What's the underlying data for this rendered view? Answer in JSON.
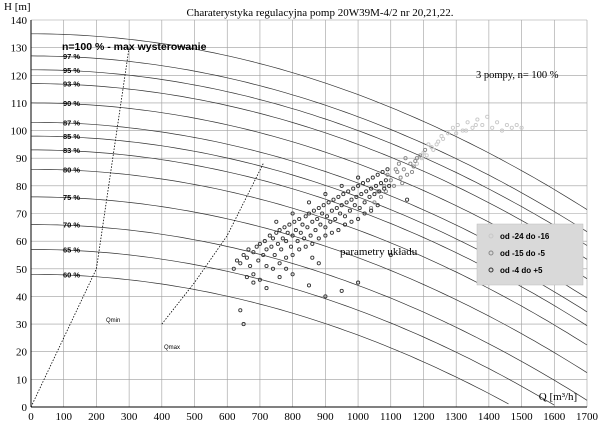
{
  "chart_data": {
    "type": "scatter",
    "title": "Charaterystyka  regulacyjna  pomp 20W39M-4/2  nr 20,21,22.",
    "xlabel": "Q [m³/h]",
    "ylabel": "H [m]",
    "xlim": [
      0,
      1700
    ],
    "ylim": [
      0,
      140
    ],
    "xticks": [
      0,
      100,
      200,
      300,
      400,
      500,
      600,
      700,
      800,
      900,
      1000,
      1100,
      1200,
      1300,
      1400,
      1500,
      1600,
      1700
    ],
    "yticks": [
      0,
      10,
      20,
      30,
      40,
      50,
      60,
      70,
      80,
      90,
      100,
      110,
      120,
      130,
      140
    ],
    "grid": true,
    "legend_position": "right",
    "annotations": {
      "max_label": "n=100 % - max wysterowanie",
      "pumps_label": "3 pompy,  n= 100 %",
      "system_label": "parametry układu",
      "qmin_label": "Qmin",
      "qmax_label": "Qmax"
    },
    "pump_curves": [
      {
        "label": "",
        "pct": 100,
        "h0": 135,
        "k": 2.2e-05
      },
      {
        "label": "97 %",
        "pct": 97,
        "h0": 127,
        "k": 2.2e-05
      },
      {
        "label": "95 %",
        "pct": 95,
        "h0": 122,
        "k": 2.2e-05
      },
      {
        "label": "93 %",
        "pct": 93,
        "h0": 117,
        "k": 2.2e-05
      },
      {
        "label": "90 %",
        "pct": 90,
        "h0": 110,
        "k": 2.2e-05
      },
      {
        "label": "87 %",
        "pct": 87,
        "h0": 103,
        "k": 2.2e-05
      },
      {
        "label": "85 %",
        "pct": 85,
        "h0": 98,
        "k": 2.2e-05
      },
      {
        "label": "83 %",
        "pct": 83,
        "h0": 93,
        "k": 2.2e-05
      },
      {
        "label": "80 %",
        "pct": 80,
        "h0": 86,
        "k": 2.2e-05
      },
      {
        "label": "75 %",
        "pct": 75,
        "h0": 76,
        "k": 2.2e-05
      },
      {
        "label": "70 %",
        "pct": 70,
        "h0": 66,
        "k": 2.2e-05
      },
      {
        "label": "65 %",
        "pct": 65,
        "h0": 57,
        "k": 2.2e-05
      },
      {
        "label": "60 %",
        "pct": 60,
        "h0": 48,
        "k": 2.2e-05
      }
    ],
    "series": [
      {
        "name": "od -24 do -16",
        "color": "#c8c8c8",
        "points": [
          [
            1290,
            101
          ],
          [
            1305,
            102
          ],
          [
            1320,
            100
          ],
          [
            1335,
            103
          ],
          [
            1350,
            101
          ],
          [
            1365,
            104
          ],
          [
            1380,
            102
          ],
          [
            1395,
            105
          ],
          [
            1410,
            101
          ],
          [
            1425,
            103
          ],
          [
            1440,
            100
          ],
          [
            1455,
            102
          ],
          [
            1470,
            101
          ],
          [
            1485,
            102
          ],
          [
            1500,
            101
          ],
          [
            1200,
            92
          ],
          [
            1215,
            95
          ],
          [
            1230,
            93
          ],
          [
            1245,
            96
          ],
          [
            1260,
            97
          ],
          [
            1275,
            99
          ],
          [
            1180,
            88
          ],
          [
            1195,
            90
          ],
          [
            1210,
            91
          ],
          [
            1225,
            94
          ],
          [
            1240,
            95
          ],
          [
            1255,
            98
          ],
          [
            1300,
            99
          ],
          [
            1330,
            100
          ],
          [
            1360,
            102
          ]
        ]
      },
      {
        "name": "od -15 do -5",
        "color": "#888888",
        "points": [
          [
            1100,
            82
          ],
          [
            1120,
            85
          ],
          [
            1140,
            86
          ],
          [
            1160,
            88
          ],
          [
            1180,
            90
          ],
          [
            1150,
            84
          ],
          [
            1130,
            83
          ],
          [
            1170,
            87
          ],
          [
            1190,
            91
          ],
          [
            1110,
            80
          ],
          [
            1060,
            78
          ],
          [
            1080,
            80
          ],
          [
            1070,
            76
          ],
          [
            1090,
            84
          ],
          [
            1125,
            88
          ],
          [
            1145,
            90
          ],
          [
            1165,
            85
          ],
          [
            1205,
            93
          ],
          [
            1050,
            74
          ],
          [
            1040,
            72
          ],
          [
            1085,
            78
          ],
          [
            1115,
            86
          ],
          [
            1135,
            81
          ],
          [
            1175,
            89
          ]
        ]
      },
      {
        "name": "od -4 do +5",
        "color": "#333333",
        "points": [
          [
            620,
            50
          ],
          [
            630,
            53
          ],
          [
            640,
            52
          ],
          [
            650,
            55
          ],
          [
            660,
            54
          ],
          [
            665,
            57
          ],
          [
            670,
            51
          ],
          [
            680,
            56
          ],
          [
            690,
            58
          ],
          [
            695,
            53
          ],
          [
            700,
            59
          ],
          [
            710,
            55
          ],
          [
            715,
            60
          ],
          [
            720,
            57
          ],
          [
            730,
            62
          ],
          [
            735,
            58
          ],
          [
            740,
            61
          ],
          [
            745,
            55
          ],
          [
            750,
            63
          ],
          [
            755,
            59
          ],
          [
            760,
            64
          ],
          [
            765,
            57
          ],
          [
            770,
            61
          ],
          [
            775,
            65
          ],
          [
            780,
            60
          ],
          [
            785,
            63
          ],
          [
            790,
            66
          ],
          [
            795,
            58
          ],
          [
            800,
            62
          ],
          [
            805,
            67
          ],
          [
            810,
            64
          ],
          [
            815,
            60
          ],
          [
            820,
            68
          ],
          [
            825,
            63
          ],
          [
            830,
            66
          ],
          [
            835,
            61
          ],
          [
            840,
            69
          ],
          [
            845,
            65
          ],
          [
            850,
            70
          ],
          [
            855,
            62
          ],
          [
            860,
            67
          ],
          [
            865,
            71
          ],
          [
            870,
            64
          ],
          [
            875,
            68
          ],
          [
            880,
            72
          ],
          [
            885,
            66
          ],
          [
            890,
            70
          ],
          [
            895,
            73
          ],
          [
            900,
            65
          ],
          [
            905,
            69
          ],
          [
            910,
            74
          ],
          [
            915,
            67
          ],
          [
            920,
            71
          ],
          [
            925,
            75
          ],
          [
            930,
            68
          ],
          [
            935,
            72
          ],
          [
            940,
            76
          ],
          [
            945,
            70
          ],
          [
            950,
            73
          ],
          [
            955,
            77
          ],
          [
            960,
            69
          ],
          [
            965,
            74
          ],
          [
            970,
            78
          ],
          [
            975,
            71
          ],
          [
            980,
            75
          ],
          [
            985,
            79
          ],
          [
            990,
            73
          ],
          [
            995,
            76
          ],
          [
            1000,
            80
          ],
          [
            1005,
            72
          ],
          [
            1010,
            77
          ],
          [
            1015,
            81
          ],
          [
            1020,
            74
          ],
          [
            1025,
            78
          ],
          [
            1030,
            82
          ],
          [
            1035,
            76
          ],
          [
            1040,
            79
          ],
          [
            1045,
            83
          ],
          [
            1050,
            77
          ],
          [
            1055,
            80
          ],
          [
            1060,
            84
          ],
          [
            1065,
            78
          ],
          [
            1070,
            81
          ],
          [
            1075,
            85
          ],
          [
            1080,
            79
          ],
          [
            1085,
            82
          ],
          [
            1090,
            86
          ],
          [
            1095,
            80
          ],
          [
            680,
            48
          ],
          [
            700,
            46
          ],
          [
            720,
            51
          ],
          [
            740,
            50
          ],
          [
            760,
            52
          ],
          [
            780,
            54
          ],
          [
            800,
            55
          ],
          [
            820,
            57
          ],
          [
            840,
            58
          ],
          [
            860,
            59
          ],
          [
            880,
            61
          ],
          [
            900,
            62
          ],
          [
            920,
            63
          ],
          [
            940,
            64
          ],
          [
            960,
            66
          ],
          [
            980,
            67
          ],
          [
            1000,
            68
          ],
          [
            1020,
            70
          ],
          [
            1040,
            71
          ],
          [
            1060,
            73
          ],
          [
            750,
            67
          ],
          [
            800,
            70
          ],
          [
            850,
            74
          ],
          [
            900,
            77
          ],
          [
            950,
            80
          ],
          [
            1000,
            83
          ],
          [
            640,
            35
          ],
          [
            650,
            30
          ],
          [
            800,
            48
          ],
          [
            850,
            44
          ],
          [
            900,
            40
          ],
          [
            950,
            42
          ],
          [
            1000,
            45
          ],
          [
            1100,
            55
          ],
          [
            1150,
            75
          ],
          [
            680,
            45
          ],
          [
            660,
            47
          ],
          [
            720,
            43
          ],
          [
            760,
            47
          ],
          [
            780,
            50
          ],
          [
            880,
            52
          ],
          [
            860,
            54
          ]
        ]
      }
    ]
  }
}
